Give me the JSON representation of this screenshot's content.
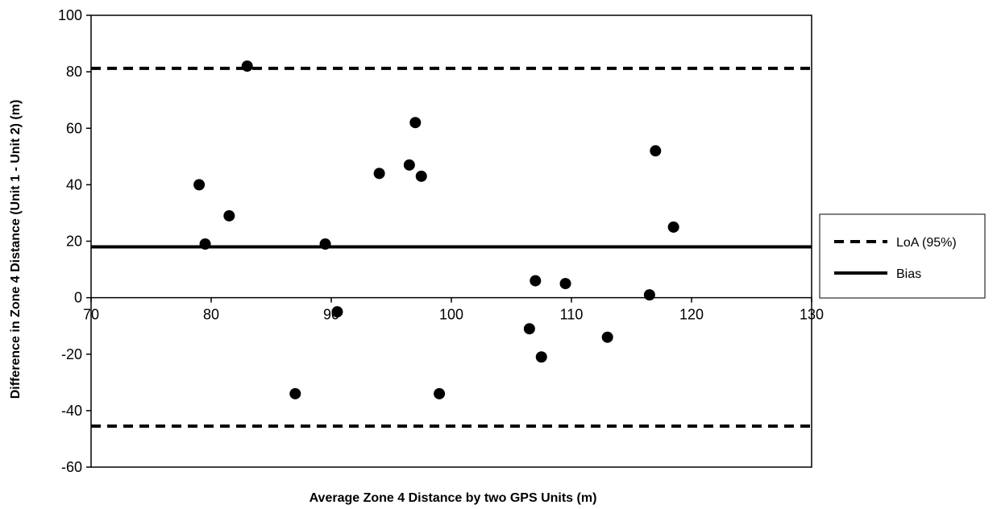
{
  "chart_data": {
    "type": "scatter",
    "title": "",
    "xlabel": "Average Zone 4 Distance by two GPS Units (m)",
    "ylabel": "Difference in  Zone 4 Distance (Unit 1 - Unit 2) (m)",
    "xlim": [
      70,
      130
    ],
    "ylim": [
      -60,
      100
    ],
    "x_ticks": [
      70,
      80,
      90,
      100,
      110,
      120,
      130
    ],
    "y_ticks": [
      -60,
      -40,
      -20,
      0,
      20,
      40,
      60,
      80,
      100
    ],
    "grid": false,
    "points": [
      {
        "x": 79.0,
        "y": 40
      },
      {
        "x": 79.5,
        "y": 19
      },
      {
        "x": 81.5,
        "y": 29
      },
      {
        "x": 83.0,
        "y": 82
      },
      {
        "x": 87.0,
        "y": -34
      },
      {
        "x": 89.5,
        "y": 19
      },
      {
        "x": 90.5,
        "y": -5
      },
      {
        "x": 94.0,
        "y": 44
      },
      {
        "x": 96.5,
        "y": 47
      },
      {
        "x": 97.0,
        "y": 62
      },
      {
        "x": 97.5,
        "y": 43
      },
      {
        "x": 99.0,
        "y": -34
      },
      {
        "x": 106.5,
        "y": -11
      },
      {
        "x": 107.0,
        "y": 6
      },
      {
        "x": 107.5,
        "y": -21
      },
      {
        "x": 109.5,
        "y": 5
      },
      {
        "x": 113.0,
        "y": -14
      },
      {
        "x": 116.5,
        "y": 1
      },
      {
        "x": 117.0,
        "y": 52
      },
      {
        "x": 118.5,
        "y": 25
      }
    ],
    "lines": [
      {
        "name": "LoA (95%)",
        "style": "dashed",
        "y": 81.2
      },
      {
        "name": "Bias",
        "style": "solid",
        "y": 18
      },
      {
        "name": "LoA (95%)",
        "style": "dashed",
        "y": -45.5
      }
    ],
    "legend": {
      "placement": "right",
      "entries": [
        {
          "label": "LoA (95%)",
          "style": "dashed"
        },
        {
          "label": "Bias",
          "style": "solid"
        }
      ]
    },
    "colors": {
      "points": "#000000",
      "lines": "#000000",
      "axes": "#000000"
    }
  }
}
